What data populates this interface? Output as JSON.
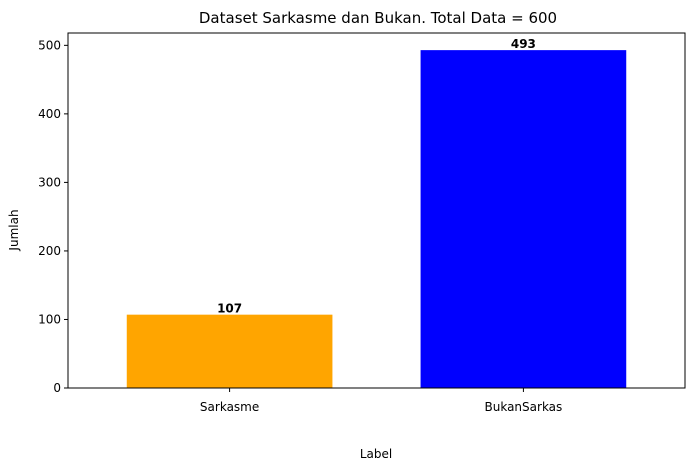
{
  "chart_data": {
    "type": "bar",
    "title": "Dataset Sarkasme dan Bukan. Total Data = 600",
    "xlabel": "Label",
    "ylabel": "Jumlah",
    "categories": [
      "Sarkasme",
      "BukanSarkas"
    ],
    "values": [
      107,
      493
    ],
    "data_labels": [
      "107",
      "493"
    ],
    "colors": [
      "#ffa500",
      "#0000ff"
    ],
    "ylim": [
      0,
      518
    ],
    "yticks": [
      0,
      100,
      200,
      300,
      400,
      500
    ],
    "grid": false,
    "legend": "none"
  }
}
